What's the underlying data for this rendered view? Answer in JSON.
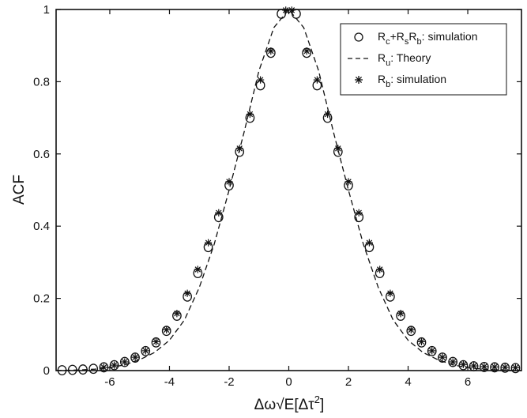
{
  "chart_data": {
    "type": "line",
    "xlabel_parts": {
      "prefix": "Δω",
      "radical": "√",
      "expr": "E[Δτ",
      "sup": "2",
      "suffix": "]"
    },
    "ylabel": "ACF",
    "xlim": [
      -7.8,
      7.8
    ],
    "ylim": [
      0,
      1
    ],
    "xticks": [
      -6,
      -4,
      -2,
      0,
      2,
      4,
      6
    ],
    "yticks": [
      0,
      0.2,
      0.4,
      0.6,
      0.8,
      1
    ],
    "ytick_labels": [
      "0",
      "0.2",
      "0.4",
      "0.6",
      "0.8",
      "1"
    ],
    "legend_position": "top-right",
    "legend": [
      {
        "marker": "circle",
        "parts": [
          {
            "t": "R",
            "sub": false
          },
          {
            "t": "c",
            "sub": true
          },
          {
            "t": "+R",
            "sub": false
          },
          {
            "t": "s",
            "sub": true
          },
          {
            "t": "R",
            "sub": false
          },
          {
            "t": "b",
            "sub": true
          },
          {
            "t": ": simulation",
            "sub": false
          }
        ]
      },
      {
        "marker": "dashed-line",
        "parts": [
          {
            "t": "R",
            "sub": false
          },
          {
            "t": "u",
            "sub": true
          },
          {
            "t": ": Theory",
            "sub": false
          }
        ]
      },
      {
        "marker": "asterisk",
        "parts": [
          {
            "t": "R",
            "sub": false
          },
          {
            "t": "b",
            "sub": true
          },
          {
            "t": ": simulation",
            "sub": false
          }
        ]
      }
    ],
    "series": [
      {
        "style": "circle",
        "x": [
          -7.6,
          -7.25,
          -6.9,
          -6.55,
          -6.2,
          -5.85,
          -5.5,
          -5.15,
          -4.8,
          -4.45,
          -4.1,
          -3.75,
          -3.4,
          -3.05,
          -2.7,
          -2.35,
          -2.0,
          -1.65,
          -1.3,
          -0.95,
          -0.6,
          -0.25,
          0.25,
          0.6,
          0.95,
          1.3,
          1.65,
          2.0,
          2.35,
          2.7,
          3.05,
          3.4,
          3.75,
          4.1,
          4.45,
          4.8,
          5.15,
          5.5,
          5.85,
          6.2,
          6.55,
          6.9,
          7.25,
          7.6
        ],
        "y": [
          0.001,
          0.002,
          0.003,
          0.005,
          0.009,
          0.015,
          0.024,
          0.036,
          0.054,
          0.078,
          0.11,
          0.152,
          0.205,
          0.27,
          0.342,
          0.425,
          0.513,
          0.606,
          0.7,
          0.79,
          0.88,
          0.988,
          0.988,
          0.88,
          0.79,
          0.7,
          0.606,
          0.513,
          0.425,
          0.342,
          0.27,
          0.205,
          0.152,
          0.11,
          0.078,
          0.054,
          0.036,
          0.024,
          0.015,
          0.012,
          0.01,
          0.009,
          0.008,
          0.007
        ]
      },
      {
        "style": "dashed-line",
        "x": [
          -7.8,
          -7.0,
          -6.5,
          -6.0,
          -5.5,
          -5.0,
          -4.5,
          -4.0,
          -3.5,
          -3.0,
          -2.5,
          -2.0,
          -1.5,
          -1.0,
          -0.5,
          0,
          0.5,
          1.0,
          1.5,
          2.0,
          2.5,
          3.0,
          3.5,
          4.0,
          4.5,
          5.0,
          5.5,
          6.0,
          6.5,
          7.0,
          7.8
        ],
        "y": [
          0.0,
          0.002,
          0.004,
          0.008,
          0.016,
          0.03,
          0.05,
          0.084,
          0.14,
          0.23,
          0.35,
          0.5,
          0.66,
          0.83,
          0.95,
          1.0,
          0.95,
          0.83,
          0.66,
          0.5,
          0.35,
          0.23,
          0.14,
          0.084,
          0.05,
          0.03,
          0.016,
          0.008,
          0.004,
          0.002,
          0.0
        ]
      },
      {
        "style": "asterisk",
        "x": [
          -6.2,
          -5.85,
          -5.5,
          -5.15,
          -4.8,
          -4.45,
          -4.1,
          -3.75,
          -3.4,
          -3.05,
          -2.7,
          -2.35,
          -2.0,
          -1.65,
          -1.3,
          -0.95,
          -0.6,
          -0.1,
          0.1,
          0.6,
          0.95,
          1.3,
          1.65,
          2.0,
          2.35,
          2.7,
          3.05,
          3.4,
          3.75,
          4.1,
          4.45,
          4.8,
          5.15,
          5.5,
          5.85,
          6.2,
          6.55,
          6.9,
          7.25,
          7.6
        ],
        "y": [
          0.009,
          0.015,
          0.024,
          0.037,
          0.055,
          0.08,
          0.113,
          0.158,
          0.214,
          0.28,
          0.354,
          0.437,
          0.523,
          0.615,
          0.71,
          0.805,
          0.885,
          0.998,
          0.998,
          0.885,
          0.805,
          0.71,
          0.615,
          0.523,
          0.437,
          0.354,
          0.28,
          0.214,
          0.158,
          0.113,
          0.08,
          0.055,
          0.037,
          0.024,
          0.017,
          0.013,
          0.011,
          0.01,
          0.009,
          0.008
        ]
      }
    ]
  }
}
